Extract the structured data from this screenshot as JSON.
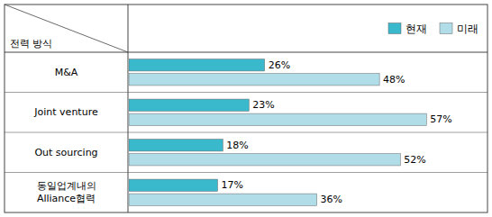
{
  "chart_data": {
    "type": "bar",
    "orientation": "horizontal",
    "ylabel": "전력 방식",
    "categories": [
      "M&A",
      "Joint venture",
      "Out sourcing",
      "동일업계내의\nAlliance협력"
    ],
    "series": [
      {
        "name": "현재",
        "color": "#3ab8cc",
        "values": [
          26,
          23,
          18,
          17
        ],
        "value_labels": [
          "26%",
          "23%",
          "18%",
          "17%"
        ]
      },
      {
        "name": "미래",
        "color": "#b0dde8",
        "values": [
          48,
          57,
          52,
          36
        ],
        "value_labels": [
          "48%",
          "57%",
          "52%",
          "36%"
        ]
      }
    ],
    "xlim": [
      0,
      68
    ],
    "data_labels": true,
    "tick_labels": "y",
    "legend": "upper right"
  }
}
